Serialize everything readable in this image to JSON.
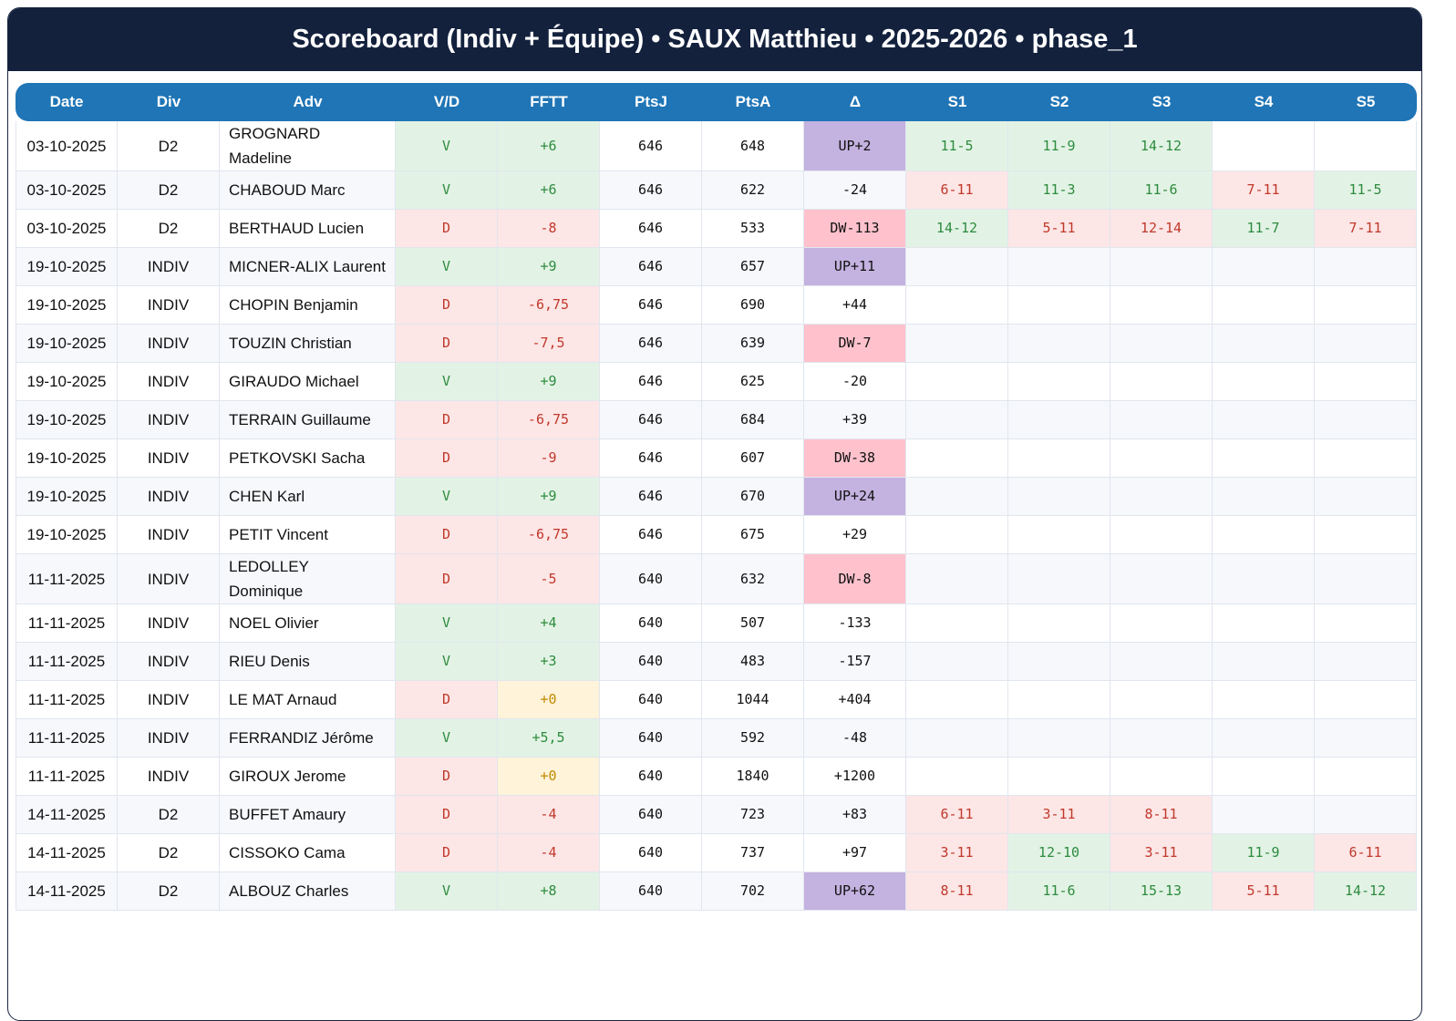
{
  "header": {
    "title": "Scoreboard (Indiv + Équipe) • SAUX Matthieu • 2025-2026 • phase_1"
  },
  "table": {
    "columns": [
      "Date",
      "Div",
      "Adv",
      "V/D",
      "FFTT",
      "PtsJ",
      "PtsA",
      "Δ",
      "S1",
      "S2",
      "S3",
      "S4",
      "S5"
    ],
    "rows": [
      [
        "03-10-2025",
        "D2",
        "GROGNARD Madeline",
        "V",
        "+6",
        646,
        648,
        "UP+2",
        "11-5",
        "11-9",
        "14-12",
        null,
        null
      ],
      [
        "03-10-2025",
        "D2",
        "CHABOUD Marc",
        "V",
        "+6",
        646,
        622,
        "-24",
        "6-11",
        "11-3",
        "11-6",
        "7-11",
        "11-5"
      ],
      [
        "03-10-2025",
        "D2",
        "BERTHAUD Lucien",
        "D",
        "-8",
        646,
        533,
        "DW-113",
        "14-12",
        "5-11",
        "12-14",
        "11-7",
        "7-11"
      ],
      [
        "19-10-2025",
        "INDIV",
        "MICNER-ALIX Laurent",
        "V",
        "+9",
        646,
        657,
        "UP+11",
        null,
        null,
        null,
        null,
        null
      ],
      [
        "19-10-2025",
        "INDIV",
        "CHOPIN Benjamin",
        "D",
        "-6,75",
        646,
        690,
        "+44",
        null,
        null,
        null,
        null,
        null
      ],
      [
        "19-10-2025",
        "INDIV",
        "TOUZIN Christian",
        "D",
        "-7,5",
        646,
        639,
        "DW-7",
        null,
        null,
        null,
        null,
        null
      ],
      [
        "19-10-2025",
        "INDIV",
        "GIRAUDO Michael",
        "V",
        "+9",
        646,
        625,
        "-20",
        null,
        null,
        null,
        null,
        null
      ],
      [
        "19-10-2025",
        "INDIV",
        "TERRAIN Guillaume",
        "D",
        "-6,75",
        646,
        684,
        "+39",
        null,
        null,
        null,
        null,
        null
      ],
      [
        "19-10-2025",
        "INDIV",
        "PETKOVSKI Sacha",
        "D",
        "-9",
        646,
        607,
        "DW-38",
        null,
        null,
        null,
        null,
        null
      ],
      [
        "19-10-2025",
        "INDIV",
        "CHEN Karl",
        "V",
        "+9",
        646,
        670,
        "UP+24",
        null,
        null,
        null,
        null,
        null
      ],
      [
        "19-10-2025",
        "INDIV",
        "PETIT Vincent",
        "D",
        "-6,75",
        646,
        675,
        "+29",
        null,
        null,
        null,
        null,
        null
      ],
      [
        "11-11-2025",
        "INDIV",
        "LEDOLLEY Dominique",
        "D",
        "-5",
        640,
        632,
        "DW-8",
        null,
        null,
        null,
        null,
        null
      ],
      [
        "11-11-2025",
        "INDIV",
        "NOEL Olivier",
        "V",
        "+4",
        640,
        507,
        "-133",
        null,
        null,
        null,
        null,
        null
      ],
      [
        "11-11-2025",
        "INDIV",
        "RIEU Denis",
        "V",
        "+3",
        640,
        483,
        "-157",
        null,
        null,
        null,
        null,
        null
      ],
      [
        "11-11-2025",
        "INDIV",
        "LE MAT Arnaud",
        "D",
        "+0",
        640,
        1044,
        "+404",
        null,
        null,
        null,
        null,
        null
      ],
      [
        "11-11-2025",
        "INDIV",
        "FERRANDIZ Jérôme",
        "V",
        "+5,5",
        640,
        592,
        "-48",
        null,
        null,
        null,
        null,
        null
      ],
      [
        "11-11-2025",
        "INDIV",
        "GIROUX Jerome",
        "D",
        "+0",
        640,
        1840,
        "+1200",
        null,
        null,
        null,
        null,
        null
      ],
      [
        "14-11-2025",
        "D2",
        "BUFFET Amaury",
        "D",
        "-4",
        640,
        723,
        "+83",
        "6-11",
        "3-11",
        "8-11",
        null,
        null
      ],
      [
        "14-11-2025",
        "D2",
        "CISSOKO Cama",
        "D",
        "-4",
        640,
        737,
        "+97",
        "3-11",
        "12-10",
        "3-11",
        "11-9",
        "6-11"
      ],
      [
        "14-11-2025",
        "D2",
        "ALBOUZ Charles",
        "V",
        "+8",
        640,
        702,
        "UP+62",
        "8-11",
        "11-6",
        "15-13",
        "5-11",
        "14-12"
      ]
    ]
  }
}
